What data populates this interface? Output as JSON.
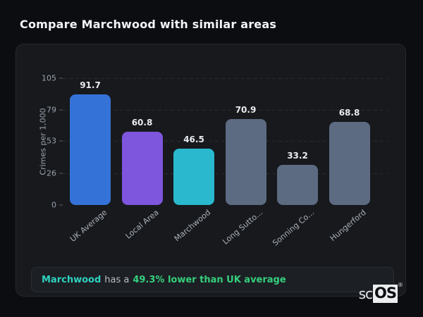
{
  "page": {
    "title": "Compare Marchwood with similar areas"
  },
  "chart_data": {
    "type": "bar",
    "title": "Compare Marchwood with similar areas",
    "xlabel": "",
    "ylabel": "Crimes per 1,000",
    "categories": [
      "UK Average",
      "Local Area",
      "Marchwood",
      "Long Sutto...",
      "Sonning Co...",
      "Hungerford"
    ],
    "values": [
      91.7,
      60.8,
      46.5,
      70.9,
      33.2,
      68.8
    ],
    "bar_colors": [
      "#3572d8",
      "#7e55dd",
      "#29b8cd",
      "#5c6b81",
      "#5c6b81",
      "#5c6b81"
    ],
    "yticks": [
      0,
      26,
      53,
      79,
      105
    ],
    "ylim": [
      0,
      105
    ],
    "grid": "horizontal-dashed",
    "legend": "none"
  },
  "note": {
    "subject": "Marchwood",
    "connector": "has a",
    "highlight": "49.3% lower than UK average",
    "subject_color": "#2ed3c1",
    "highlight_color": "#35d07c"
  },
  "logo": {
    "prefix": "sc",
    "suffix": "OS",
    "mark": "®"
  }
}
